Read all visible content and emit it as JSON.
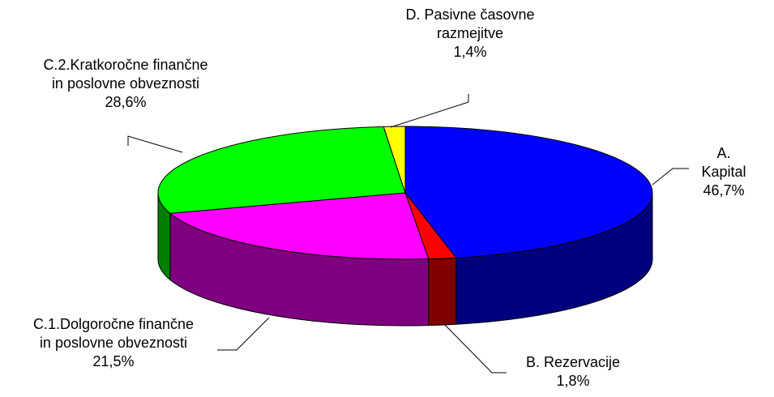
{
  "chart_data": {
    "type": "pie3d",
    "categories": [
      "A. Kapital",
      "B. Rezervacije",
      "C.1.Dolgoročne finančne\nin poslovne obveznosti",
      "C.2.Kratkoročne finančne\nin poslovne obveznosti",
      "D. Pasivne časovne\nrazmejitve"
    ],
    "values": [
      46.7,
      1.8,
      21.5,
      28.6,
      1.4
    ],
    "value_labels": [
      "46,7%",
      "1,8%",
      "21,5%",
      "28,6%",
      "1,4%"
    ],
    "colors": [
      "#0000ff",
      "#ff0000",
      "#ff00ff",
      "#00ff00",
      "#ffff00"
    ]
  }
}
